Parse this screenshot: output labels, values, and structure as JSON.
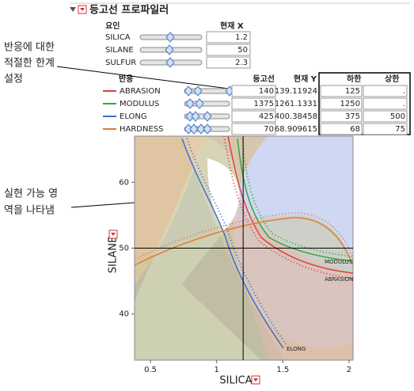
{
  "header": {
    "title": "등고선 프로파일러"
  },
  "factors": {
    "headers": [
      "요인",
      "현재 X"
    ],
    "rows": [
      {
        "name": "SILICA",
        "value": 1.2
      },
      {
        "name": "SILANE",
        "value": 50
      },
      {
        "name": "SULFUR",
        "value": 2.3
      }
    ]
  },
  "responses": {
    "headers": [
      "반응",
      "등고선",
      "현재 Y",
      "하한",
      "상한"
    ],
    "rows": [
      {
        "name": "ABRASION",
        "color": "#d9443a",
        "contour": 140,
        "current": 139.11924,
        "lower": 125,
        "upper": "."
      },
      {
        "name": "MODULUS",
        "color": "#3aa63a",
        "contour": 1375,
        "current": 1261.1331,
        "lower": 1250,
        "upper": "."
      },
      {
        "name": "ELONG",
        "color": "#3c6fd0",
        "contour": 425,
        "current": 400.38458,
        "lower": 375,
        "upper": 500
      },
      {
        "name": "HARDNESS",
        "color": "#e07b39",
        "contour": 70,
        "current": 68.909615,
        "lower": 68,
        "upper": 75
      }
    ]
  },
  "annotations": {
    "limits": [
      "반응에 대한",
      "적절한 한계",
      "설정"
    ],
    "feasible": [
      "실현 가능 영",
      "역을 나타냄"
    ]
  },
  "plot": {
    "x_label": "SILICA",
    "y_label": "SILANE",
    "xlim": [
      0.38,
      2.03
    ],
    "ylim": [
      33,
      67
    ],
    "xticks": [
      0.5,
      1,
      1.5,
      2
    ],
    "yticks": [
      40,
      50,
      60
    ]
  }
}
